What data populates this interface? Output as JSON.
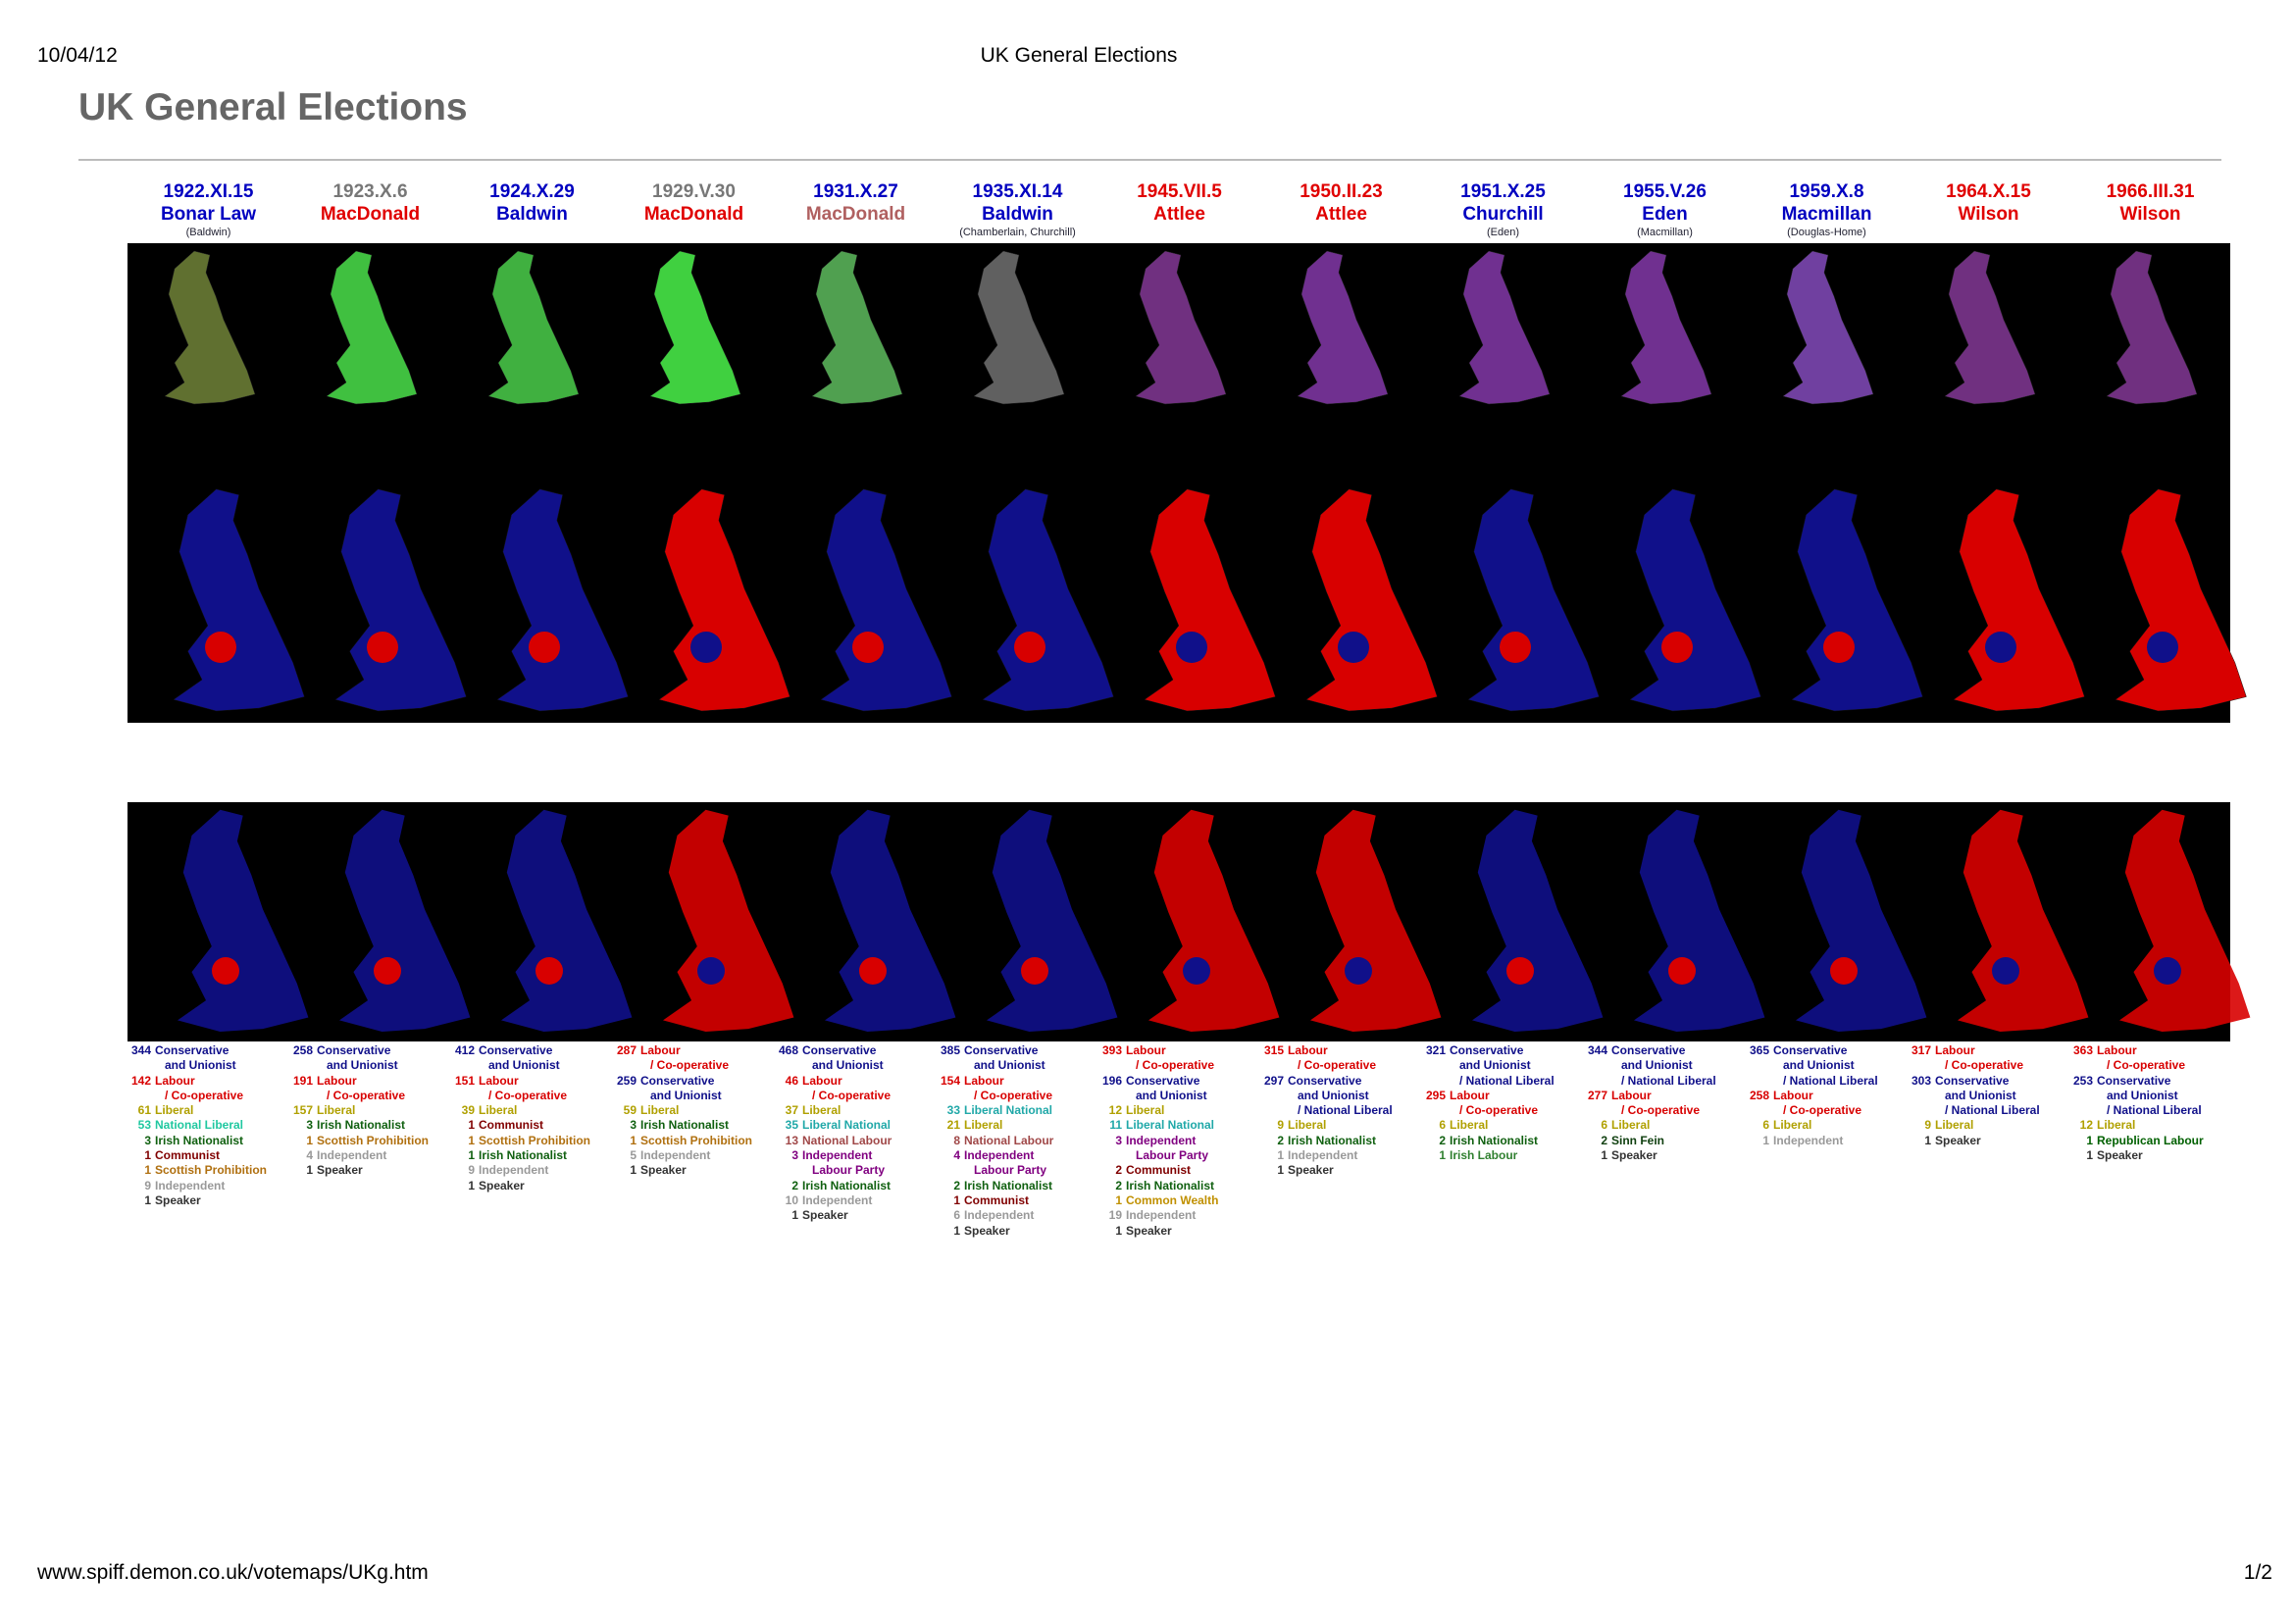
{
  "header": {
    "date": "10/04/12",
    "title": "UK General Elections"
  },
  "page_title": "UK General Elections",
  "elections": [
    {
      "date": "1922.XI.15",
      "date_color": "#0000c0",
      "pm": "Bonar Law",
      "pm_color": "#0000c0",
      "note": "(Baldwin)",
      "results": [
        {
          "seats": 344,
          "party": [
            "Conservative",
            "and Unionist"
          ],
          "color": "#10108a"
        },
        {
          "seats": 142,
          "party": [
            "Labour",
            "/ Co-operative"
          ],
          "color": "#d80000"
        },
        {
          "seats": 61,
          "party": [
            "Liberal"
          ],
          "color": "#b0a000"
        },
        {
          "seats": 53,
          "party": [
            "National Liberal"
          ],
          "color": "#20c8a0"
        },
        {
          "seats": 3,
          "party": [
            "Irish Nationalist"
          ],
          "color": "#106010"
        },
        {
          "seats": 1,
          "party": [
            "Communist"
          ],
          "color": "#800000"
        },
        {
          "seats": 1,
          "party": [
            "Scottish Prohibition"
          ],
          "color": "#b07010"
        },
        {
          "seats": 9,
          "party": [
            "Independent"
          ],
          "color": "#999999"
        },
        {
          "seats": 1,
          "party": [
            "Speaker"
          ],
          "color": "#333333"
        }
      ]
    },
    {
      "date": "1923.X.6",
      "date_color": "#777777",
      "pm": "MacDonald",
      "pm_color": "#e00000",
      "note": null,
      "results": [
        {
          "seats": 258,
          "party": [
            "Conservative",
            "and Unionist"
          ],
          "color": "#10108a"
        },
        {
          "seats": 191,
          "party": [
            "Labour",
            "/ Co-operative"
          ],
          "color": "#d80000"
        },
        {
          "seats": 157,
          "party": [
            "Liberal"
          ],
          "color": "#b0a000"
        },
        {
          "seats": 3,
          "party": [
            "Irish Nationalist"
          ],
          "color": "#106010"
        },
        {
          "seats": 1,
          "party": [
            "Scottish Prohibition"
          ],
          "color": "#b07010"
        },
        {
          "seats": 4,
          "party": [
            "Independent"
          ],
          "color": "#999999"
        },
        {
          "seats": 1,
          "party": [
            "Speaker"
          ],
          "color": "#333333"
        }
      ]
    },
    {
      "date": "1924.X.29",
      "date_color": "#0000c0",
      "pm": "Baldwin",
      "pm_color": "#0000c0",
      "note": null,
      "results": [
        {
          "seats": 412,
          "party": [
            "Conservative",
            "and Unionist"
          ],
          "color": "#10108a"
        },
        {
          "seats": 151,
          "party": [
            "Labour",
            "/ Co-operative"
          ],
          "color": "#d80000"
        },
        {
          "seats": 39,
          "party": [
            "Liberal"
          ],
          "color": "#b0a000"
        },
        {
          "seats": 1,
          "party": [
            "Communist"
          ],
          "color": "#800000"
        },
        {
          "seats": 1,
          "party": [
            "Scottish Prohibition"
          ],
          "color": "#b07010"
        },
        {
          "seats": 1,
          "party": [
            "Irish Nationalist"
          ],
          "color": "#106010"
        },
        {
          "seats": 9,
          "party": [
            "Independent"
          ],
          "color": "#999999"
        },
        {
          "seats": 1,
          "party": [
            "Speaker"
          ],
          "color": "#333333"
        }
      ]
    },
    {
      "date": "1929.V.30",
      "date_color": "#777777",
      "pm": "MacDonald",
      "pm_color": "#e00000",
      "note": null,
      "results": [
        {
          "seats": 287,
          "party": [
            "Labour",
            "/ Co-operative"
          ],
          "color": "#d80000"
        },
        {
          "seats": 259,
          "party": [
            "Conservative",
            "and Unionist"
          ],
          "color": "#10108a"
        },
        {
          "seats": 59,
          "party": [
            "Liberal"
          ],
          "color": "#b0a000"
        },
        {
          "seats": 3,
          "party": [
            "Irish Nationalist"
          ],
          "color": "#106010"
        },
        {
          "seats": 1,
          "party": [
            "Scottish Prohibition"
          ],
          "color": "#b07010"
        },
        {
          "seats": 5,
          "party": [
            "Independent"
          ],
          "color": "#999999"
        },
        {
          "seats": 1,
          "party": [
            "Speaker"
          ],
          "color": "#333333"
        }
      ]
    },
    {
      "date": "1931.X.27",
      "date_color": "#0000c0",
      "pm": "MacDonald",
      "pm_color": "#b06060",
      "note": null,
      "results": [
        {
          "seats": 468,
          "party": [
            "Conservative",
            "and Unionist"
          ],
          "color": "#10108a"
        },
        {
          "seats": 46,
          "party": [
            "Labour",
            "/ Co-operative"
          ],
          "color": "#d80000"
        },
        {
          "seats": 37,
          "party": [
            "Liberal"
          ],
          "color": "#b0a000"
        },
        {
          "seats": 35,
          "party": [
            "Liberal National"
          ],
          "color": "#20a8a8"
        },
        {
          "seats": 13,
          "party": [
            "National Labour"
          ],
          "color": "#a04848"
        },
        {
          "seats": 3,
          "party": [
            "Independent",
            "Labour Party"
          ],
          "color": "#800080"
        },
        {
          "seats": 2,
          "party": [
            "Irish Nationalist"
          ],
          "color": "#106010"
        },
        {
          "seats": 10,
          "party": [
            "Independent"
          ],
          "color": "#999999"
        },
        {
          "seats": 1,
          "party": [
            "Speaker"
          ],
          "color": "#333333"
        }
      ]
    },
    {
      "date": "1935.XI.14",
      "date_color": "#0000c0",
      "pm": "Baldwin",
      "pm_color": "#0000c0",
      "note": "(Chamberlain, Churchill)",
      "results": [
        {
          "seats": 385,
          "party": [
            "Conservative",
            "and Unionist"
          ],
          "color": "#10108a"
        },
        {
          "seats": 154,
          "party": [
            "Labour",
            "/ Co-operative"
          ],
          "color": "#d80000"
        },
        {
          "seats": 33,
          "party": [
            "Liberal National"
          ],
          "color": "#20a8a8"
        },
        {
          "seats": 21,
          "party": [
            "Liberal"
          ],
          "color": "#b0a000"
        },
        {
          "seats": 8,
          "party": [
            "National Labour"
          ],
          "color": "#a04848"
        },
        {
          "seats": 4,
          "party": [
            "Independent",
            "Labour Party"
          ],
          "color": "#800080"
        },
        {
          "seats": 2,
          "party": [
            "Irish Nationalist"
          ],
          "color": "#106010"
        },
        {
          "seats": 1,
          "party": [
            "Communist"
          ],
          "color": "#800000"
        },
        {
          "seats": 6,
          "party": [
            "Independent"
          ],
          "color": "#999999"
        },
        {
          "seats": 1,
          "party": [
            "Speaker"
          ],
          "color": "#333333"
        }
      ]
    },
    {
      "date": "1945.VII.5",
      "date_color": "#e00000",
      "pm": "Attlee",
      "pm_color": "#e00000",
      "note": null,
      "results": [
        {
          "seats": 393,
          "party": [
            "Labour",
            "/ Co-operative"
          ],
          "color": "#d80000"
        },
        {
          "seats": 196,
          "party": [
            "Conservative",
            "and Unionist"
          ],
          "color": "#10108a"
        },
        {
          "seats": 12,
          "party": [
            "Liberal"
          ],
          "color": "#b0a000"
        },
        {
          "seats": 11,
          "party": [
            "Liberal National"
          ],
          "color": "#20a8a8"
        },
        {
          "seats": 3,
          "party": [
            "Independent",
            "Labour Party"
          ],
          "color": "#800080"
        },
        {
          "seats": 2,
          "party": [
            "Communist"
          ],
          "color": "#800000"
        },
        {
          "seats": 2,
          "party": [
            "Irish Nationalist"
          ],
          "color": "#106010"
        },
        {
          "seats": 1,
          "party": [
            "Common Wealth"
          ],
          "color": "#c09000"
        },
        {
          "seats": 19,
          "party": [
            "Independent"
          ],
          "color": "#999999"
        },
        {
          "seats": 1,
          "party": [
            "Speaker"
          ],
          "color": "#333333"
        }
      ]
    },
    {
      "date": "1950.II.23",
      "date_color": "#e00000",
      "pm": "Attlee",
      "pm_color": "#e00000",
      "note": null,
      "results": [
        {
          "seats": 315,
          "party": [
            "Labour",
            "/ Co-operative"
          ],
          "color": "#d80000"
        },
        {
          "seats": 297,
          "party": [
            "Conservative",
            "and Unionist",
            "/ National Liberal"
          ],
          "color": "#10108a"
        },
        {
          "seats": 9,
          "party": [
            "Liberal"
          ],
          "color": "#b0a000"
        },
        {
          "seats": 2,
          "party": [
            "Irish Nationalist"
          ],
          "color": "#106010"
        },
        {
          "seats": 1,
          "party": [
            "Independent"
          ],
          "color": "#999999"
        },
        {
          "seats": 1,
          "party": [
            "Speaker"
          ],
          "color": "#333333"
        }
      ]
    },
    {
      "date": "1951.X.25",
      "date_color": "#0000c0",
      "pm": "Churchill",
      "pm_color": "#0000c0",
      "note": "(Eden)",
      "results": [
        {
          "seats": 321,
          "party": [
            "Conservative",
            "and Unionist",
            "/ National Liberal"
          ],
          "color": "#10108a"
        },
        {
          "seats": 295,
          "party": [
            "Labour",
            "/ Co-operative"
          ],
          "color": "#d80000"
        },
        {
          "seats": 6,
          "party": [
            "Liberal"
          ],
          "color": "#b0a000"
        },
        {
          "seats": 2,
          "party": [
            "Irish Nationalist"
          ],
          "color": "#106010"
        },
        {
          "seats": 1,
          "party": [
            "Irish Labour"
          ],
          "color": "#308030"
        }
      ]
    },
    {
      "date": "1955.V.26",
      "date_color": "#0000c0",
      "pm": "Eden",
      "pm_color": "#0000c0",
      "note": "(Macmillan)",
      "results": [
        {
          "seats": 344,
          "party": [
            "Conservative",
            "and Unionist",
            "/ National Liberal"
          ],
          "color": "#10108a"
        },
        {
          "seats": 277,
          "party": [
            "Labour",
            "/ Co-operative"
          ],
          "color": "#d80000"
        },
        {
          "seats": 6,
          "party": [
            "Liberal"
          ],
          "color": "#b0a000"
        },
        {
          "seats": 2,
          "party": [
            "Sinn Fein"
          ],
          "color": "#104010"
        },
        {
          "seats": 1,
          "party": [
            "Speaker"
          ],
          "color": "#333333"
        }
      ]
    },
    {
      "date": "1959.X.8",
      "date_color": "#0000c0",
      "pm": "Macmillan",
      "pm_color": "#0000c0",
      "note": "(Douglas-Home)",
      "results": [
        {
          "seats": 365,
          "party": [
            "Conservative",
            "and Unionist",
            "/ National Liberal"
          ],
          "color": "#10108a"
        },
        {
          "seats": 258,
          "party": [
            "Labour",
            "/ Co-operative"
          ],
          "color": "#d80000"
        },
        {
          "seats": 6,
          "party": [
            "Liberal"
          ],
          "color": "#b0a000"
        },
        {
          "seats": 1,
          "party": [
            "Independent"
          ],
          "color": "#999999"
        }
      ]
    },
    {
      "date": "1964.X.15",
      "date_color": "#e00000",
      "pm": "Wilson",
      "pm_color": "#e00000",
      "note": null,
      "results": [
        {
          "seats": 317,
          "party": [
            "Labour",
            "/ Co-operative"
          ],
          "color": "#d80000"
        },
        {
          "seats": 303,
          "party": [
            "Conservative",
            "and Unionist",
            "/ National Liberal"
          ],
          "color": "#10108a"
        },
        {
          "seats": 9,
          "party": [
            "Liberal"
          ],
          "color": "#b0a000"
        },
        {
          "seats": 1,
          "party": [
            "Speaker"
          ],
          "color": "#333333"
        }
      ]
    },
    {
      "date": "1966.III.31",
      "date_color": "#e00000",
      "pm": "Wilson",
      "pm_color": "#e00000",
      "note": null,
      "results": [
        {
          "seats": 363,
          "party": [
            "Labour",
            "/ Co-operative"
          ],
          "color": "#d80000"
        },
        {
          "seats": 253,
          "party": [
            "Conservative",
            "and Unionist",
            "/ National Liberal"
          ],
          "color": "#10108a"
        },
        {
          "seats": 12,
          "party": [
            "Liberal"
          ],
          "color": "#b0a000"
        },
        {
          "seats": 1,
          "party": [
            "Republican Labour"
          ],
          "color": "#006000"
        },
        {
          "seats": 1,
          "party": [
            "Speaker"
          ],
          "color": "#333333"
        }
      ]
    }
  ],
  "footer": {
    "url": "www.spiff.demon.co.uk/votemaps/UKg.htm",
    "page": "1/2"
  }
}
